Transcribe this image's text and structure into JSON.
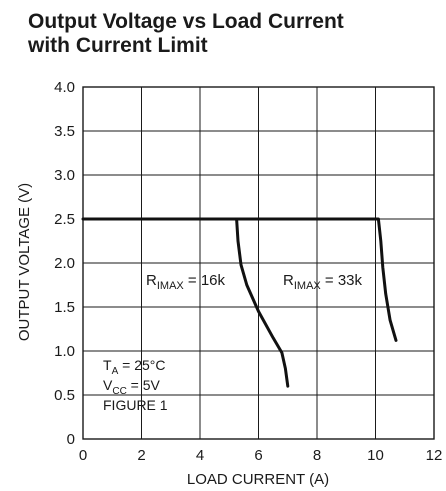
{
  "chart_data": {
    "type": "line",
    "title_line1": "Output Voltage vs Load Current",
    "title_line2": "with Current Limit",
    "xlabel": "LOAD CURRENT (A)",
    "ylabel": "OUTPUT VOLTAGE (V)",
    "xlim": [
      0,
      12
    ],
    "ylim": [
      0,
      4.0
    ],
    "xticks": [
      0,
      2,
      4,
      6,
      8,
      10,
      12
    ],
    "yticks": [
      0,
      0.5,
      1.0,
      1.5,
      2.0,
      2.5,
      3.0,
      3.5,
      4.0
    ],
    "xtick_labels": [
      "0",
      "2",
      "4",
      "6",
      "8",
      "10",
      "12"
    ],
    "ytick_labels": [
      "0",
      "0.5",
      "1.0",
      "1.5",
      "2.0",
      "2.5",
      "3.0",
      "3.5",
      "4.0"
    ],
    "grid": true,
    "series": [
      {
        "label_main": "R",
        "label_sub": "IMAX",
        "label_value": " = 16k",
        "x": [
          0,
          5.25,
          5.3,
          5.4,
          5.6,
          6.0,
          6.5,
          6.8,
          6.92,
          7.0
        ],
        "y": [
          2.5,
          2.5,
          2.25,
          1.98,
          1.75,
          1.45,
          1.15,
          0.98,
          0.8,
          0.6
        ]
      },
      {
        "label_main": "R",
        "label_sub": "IMAX",
        "label_value": " = 33k",
        "x": [
          5.25,
          10.1,
          10.18,
          10.25,
          10.35,
          10.5,
          10.7
        ],
        "y": [
          2.5,
          2.5,
          2.25,
          1.95,
          1.65,
          1.35,
          1.12
        ]
      }
    ],
    "annotations": {
      "line1_main": "T",
      "line1_sub": "A",
      "line1_rest": " = 25°C",
      "line2_main": "V",
      "line2_sub": "CC",
      "line2_rest": " = 5V",
      "line3": "FIGURE 1"
    }
  }
}
